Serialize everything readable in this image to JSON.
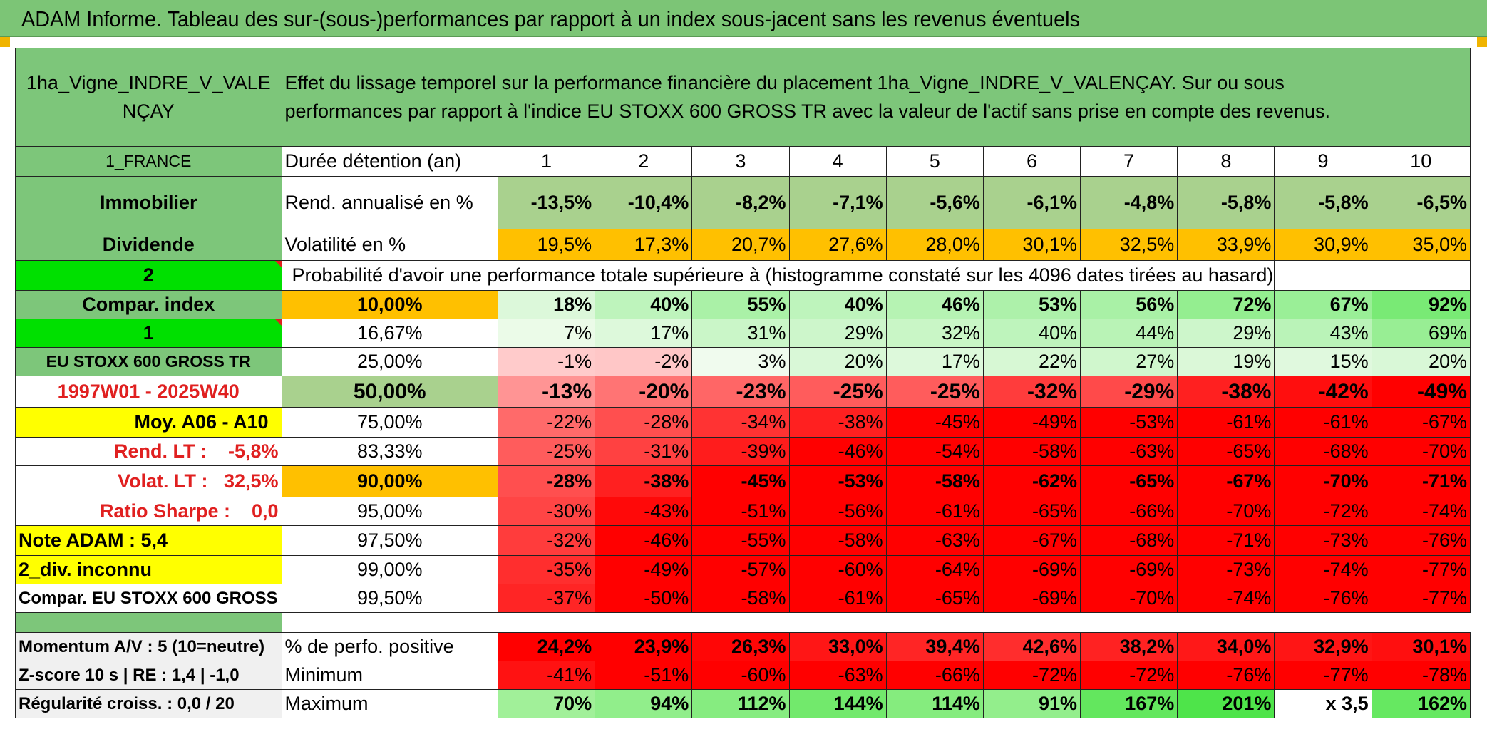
{
  "banner": {
    "title": "ADAM Informe. Tableau des sur-(sous-)performances par rapport à un index sous-jacent sans les revenus éventuels"
  },
  "header": {
    "asset_line1": "1ha_Vigne_INDRE_V_VALE",
    "asset_line2": "NÇAY",
    "description_line1": "Effet du lissage temporel sur la performance financière du placement 1ha_Vigne_INDRE_V_VALENÇAY. Sur ou sous",
    "description_line2": "performances par rapport à l'indice EU STOXX 600 GROSS TR avec la valeur de l'actif sans prise en compte des revenus."
  },
  "left_labels": {
    "country": "1_FRANCE",
    "category": "Immobilier",
    "type": "Dividende",
    "selector1": "2",
    "compar_index": "Compar. index",
    "selector2": "1",
    "index_name": "EU STOXX 600 GROSS TR",
    "period": "1997W01 - 2025W40",
    "moy": "Moy. A06 - A10",
    "rend_lt": "Rend. LT :    -5,8%",
    "volat_lt": "Volat. LT :   32,5%",
    "sharpe": "Ratio Sharpe :    0,0",
    "note": "Note ADAM : 5,4",
    "div": "2_div. inconnu",
    "compar_full": "Compar. EU STOXX 600 GROSS TR",
    "momentum": "Momentum A/V : 5 (10=neutre)",
    "zscore": "Z-score 10 s | RE : 1,4 | -1,0",
    "regularite": "Régularité croiss. : 0,0 / 20"
  },
  "table": {
    "duration_label": "Durée détention (an)",
    "years": [
      "1",
      "2",
      "3",
      "4",
      "5",
      "6",
      "7",
      "8",
      "9",
      "10"
    ],
    "rend_label": "Rend. annualisé en %",
    "rend": [
      "-13,5%",
      "-10,4%",
      "-8,2%",
      "-7,1%",
      "-5,6%",
      "-6,1%",
      "-4,8%",
      "-5,8%",
      "-5,8%",
      "-6,5%"
    ],
    "vol_label": "Volatilité en %",
    "vol": [
      "19,5%",
      "17,3%",
      "20,7%",
      "27,6%",
      "28,0%",
      "30,1%",
      "32,5%",
      "33,9%",
      "30,9%",
      "35,0%"
    ],
    "prob_label": "Probabilité d'avoir une performance totale supérieure à (histogramme constaté sur les 4096 dates tirées au hasard)",
    "quantile_rows": [
      {
        "p": "10,00%",
        "values": [
          "18%",
          "40%",
          "55%",
          "40%",
          "46%",
          "53%",
          "56%",
          "72%",
          "67%",
          "92%"
        ]
      },
      {
        "p": "16,67%",
        "values": [
          "7%",
          "17%",
          "31%",
          "29%",
          "32%",
          "40%",
          "44%",
          "29%",
          "43%",
          "69%"
        ]
      },
      {
        "p": "25,00%",
        "values": [
          "-1%",
          "-2%",
          "3%",
          "20%",
          "17%",
          "22%",
          "27%",
          "19%",
          "15%",
          "20%"
        ]
      },
      {
        "p": "50,00%",
        "values": [
          "-13%",
          "-20%",
          "-23%",
          "-25%",
          "-25%",
          "-32%",
          "-29%",
          "-38%",
          "-42%",
          "-49%"
        ]
      },
      {
        "p": "75,00%",
        "values": [
          "-22%",
          "-28%",
          "-34%",
          "-38%",
          "-45%",
          "-49%",
          "-53%",
          "-61%",
          "-61%",
          "-67%"
        ]
      },
      {
        "p": "83,33%",
        "values": [
          "-25%",
          "-31%",
          "-39%",
          "-46%",
          "-54%",
          "-58%",
          "-63%",
          "-65%",
          "-68%",
          "-70%"
        ]
      },
      {
        "p": "90,00%",
        "values": [
          "-28%",
          "-38%",
          "-45%",
          "-53%",
          "-58%",
          "-62%",
          "-65%",
          "-67%",
          "-70%",
          "-71%"
        ]
      },
      {
        "p": "95,00%",
        "values": [
          "-30%",
          "-43%",
          "-51%",
          "-56%",
          "-61%",
          "-65%",
          "-66%",
          "-70%",
          "-72%",
          "-74%"
        ]
      },
      {
        "p": "97,50%",
        "values": [
          "-32%",
          "-46%",
          "-55%",
          "-58%",
          "-63%",
          "-67%",
          "-68%",
          "-71%",
          "-73%",
          "-76%"
        ]
      },
      {
        "p": "99,00%",
        "values": [
          "-35%",
          "-49%",
          "-57%",
          "-60%",
          "-64%",
          "-69%",
          "-69%",
          "-73%",
          "-74%",
          "-77%"
        ]
      },
      {
        "p": "99,50%",
        "values": [
          "-37%",
          "-50%",
          "-58%",
          "-61%",
          "-65%",
          "-69%",
          "-70%",
          "-74%",
          "-76%",
          "-77%"
        ]
      }
    ],
    "pos_label": "% de perfo. positive",
    "pos": [
      "24,2%",
      "23,9%",
      "26,3%",
      "33,0%",
      "39,4%",
      "42,6%",
      "38,2%",
      "34,0%",
      "32,9%",
      "30,1%"
    ],
    "min_label": "Minimum",
    "min": [
      "-41%",
      "-51%",
      "-60%",
      "-63%",
      "-66%",
      "-72%",
      "-72%",
      "-76%",
      "-77%",
      "-78%"
    ],
    "max_label": "Maximum",
    "max": [
      "70%",
      "94%",
      "112%",
      "144%",
      "114%",
      "91%",
      "167%",
      "201%",
      "x 3,5",
      "162%"
    ]
  },
  "colors": {
    "banner": "#7cc576",
    "label_green": "#7dc67a",
    "orange": "#ffc000",
    "yellow": "#ffff00",
    "text_red": "#e02020"
  }
}
